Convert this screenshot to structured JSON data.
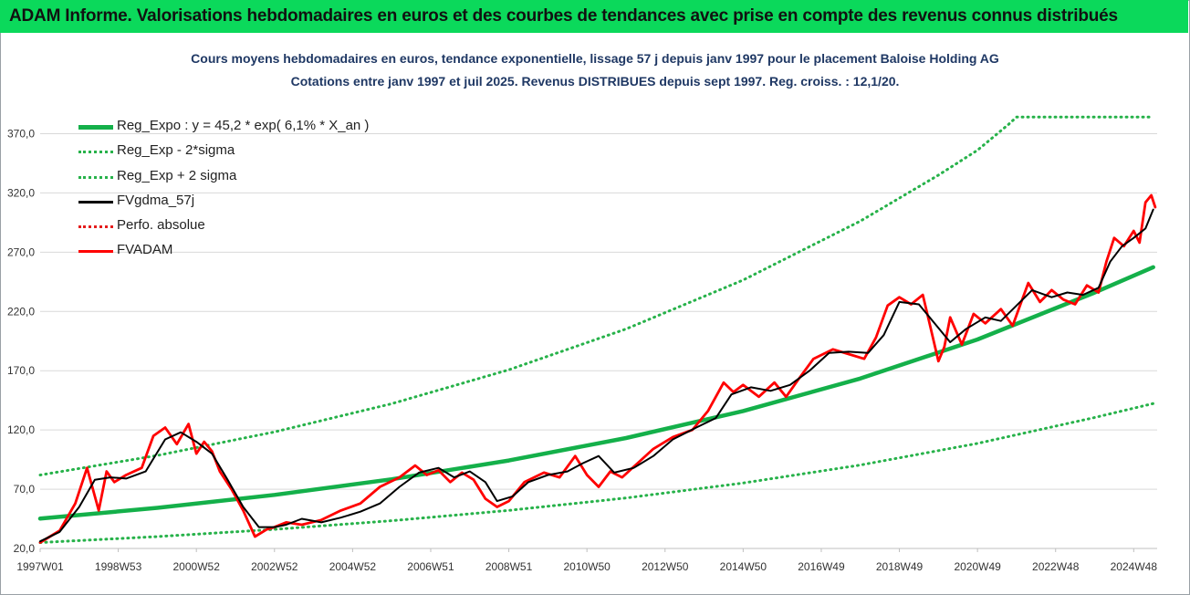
{
  "banner": {
    "title": "ADAM Informe. Valorisations hebdomadaires en euros et des courbes de tendances avec prise en compte des revenus connus distribués",
    "color": "#0bd95b"
  },
  "chart_data": {
    "type": "line",
    "title": "Cours moyens hebdomadaires en euros, tendance exponentielle, lissage 57 j depuis janv 1997 pour le placement Baloise Holding AG",
    "subtitle": "Cotations entre janv 1997 et juil 2025. Revenus DISTRIBUES depuis sept 1997. Reg. croiss. : 12,1/20.",
    "xlabel": "",
    "ylabel": "",
    "x_tick_labels": [
      "1997W01",
      "1998W53",
      "2000W52",
      "2002W52",
      "2004W52",
      "2006W51",
      "2008W51",
      "2010W50",
      "2012W50",
      "2014W50",
      "2016W49",
      "2018W49",
      "2020W49",
      "2022W48",
      "2024W48"
    ],
    "y_ticks": [
      "20,0",
      "70,0",
      "120,0",
      "170,0",
      "220,0",
      "270,0",
      "320,0",
      "370,0"
    ],
    "ylim": [
      20,
      395
    ],
    "xlim": [
      1997.0,
      2025.6
    ],
    "grid": true,
    "legend_position": "top-left",
    "series": [
      {
        "name": "Reg_Expo : y = 45,2 * exp( 6,1% *  X_an )",
        "color": "#14b04a",
        "style": "solid",
        "x": [
          1997.0,
          2000.0,
          2003.0,
          2006.0,
          2009.0,
          2012.0,
          2015.0,
          2018.0,
          2021.0,
          2024.0,
          2025.5
        ],
        "values": [
          45.2,
          54.3,
          65.2,
          78.4,
          94.2,
          113.2,
          136.0,
          163.4,
          196.3,
          235.9,
          257.3
        ]
      },
      {
        "name": "Reg_Exp - 2*sigma",
        "color": "#27b24a",
        "style": "dotted",
        "x": [
          1997.0,
          2000.0,
          2003.0,
          2006.0,
          2009.0,
          2012.0,
          2015.0,
          2018.0,
          2021.0,
          2024.0,
          2025.5
        ],
        "values": [
          25.0,
          30.0,
          36.1,
          43.4,
          52.1,
          62.6,
          75.2,
          90.4,
          108.6,
          130.5,
          142.3
        ]
      },
      {
        "name": "Reg_Exp + 2 sigma",
        "color": "#27b24a",
        "style": "dotted",
        "x": [
          1997.0,
          2000.0,
          2003.0,
          2006.0,
          2009.0,
          2012.0,
          2015.0,
          2018.0,
          2020.0,
          2021.0,
          2021.8,
          2022.0,
          2025.5
        ],
        "values": [
          82.0,
          98.5,
          118.3,
          142.1,
          170.8,
          205.2,
          246.5,
          296.2,
          335.0,
          356.0,
          378.0,
          384.0,
          384.0
        ]
      },
      {
        "name": "FVgdma_57j",
        "color": "#000000",
        "style": "solid",
        "x": [
          1997.0,
          1997.5,
          1998.0,
          1998.4,
          1998.8,
          1999.2,
          1999.7,
          2000.2,
          2000.6,
          2001.0,
          2001.4,
          2001.8,
          2002.2,
          2002.6,
          2003.0,
          2003.3,
          2003.7,
          2004.2,
          2004.7,
          2005.2,
          2005.7,
          2006.2,
          2006.7,
          2007.2,
          2007.6,
          2008.0,
          2008.4,
          2008.7,
          2009.1,
          2009.5,
          2010.0,
          2010.5,
          2010.9,
          2011.3,
          2011.7,
          2012.2,
          2012.7,
          2013.2,
          2013.8,
          2014.3,
          2014.7,
          2015.2,
          2015.7,
          2016.2,
          2016.7,
          2017.2,
          2017.7,
          2018.2,
          2018.6,
          2019.0,
          2019.5,
          2019.9,
          2020.3,
          2020.7,
          2021.2,
          2021.6,
          2022.0,
          2022.4,
          2022.9,
          2023.3,
          2023.7,
          2024.1,
          2024.4,
          2024.7,
          2025.0,
          2025.3,
          2025.5
        ],
        "values": [
          26,
          34,
          55,
          78,
          80,
          79,
          85,
          112,
          118,
          110,
          100,
          78,
          55,
          38,
          38,
          40,
          45,
          42,
          46,
          51,
          58,
          72,
          84,
          88,
          80,
          85,
          76,
          60,
          64,
          76,
          82,
          85,
          92,
          98,
          84,
          88,
          98,
          112,
          122,
          130,
          150,
          156,
          153,
          158,
          170,
          185,
          186,
          185,
          200,
          228,
          226,
          210,
          194,
          205,
          215,
          212,
          225,
          238,
          232,
          236,
          234,
          240,
          262,
          275,
          282,
          290,
          306
        ]
      },
      {
        "name": "Perfo. absolue",
        "color": "#e41c1c",
        "style": "dotted",
        "x": [],
        "values": []
      },
      {
        "name": "FVADAM",
        "color": "#ff0000",
        "style": "solid",
        "x": [
          1997.0,
          1997.5,
          1997.9,
          1998.2,
          1998.5,
          1998.7,
          1998.9,
          1999.2,
          1999.6,
          1999.9,
          2000.2,
          2000.5,
          2000.8,
          2001.0,
          2001.2,
          2001.4,
          2001.6,
          2001.9,
          2002.2,
          2002.5,
          2002.8,
          2003.0,
          2003.3,
          2003.7,
          2004.2,
          2004.7,
          2005.2,
          2005.7,
          2006.2,
          2006.6,
          2006.9,
          2007.2,
          2007.5,
          2007.8,
          2008.1,
          2008.4,
          2008.7,
          2009.0,
          2009.4,
          2009.9,
          2010.3,
          2010.7,
          2011.0,
          2011.3,
          2011.6,
          2011.9,
          2012.3,
          2012.7,
          2013.2,
          2013.7,
          2014.1,
          2014.5,
          2014.75,
          2015.0,
          2015.4,
          2015.8,
          2016.1,
          2016.4,
          2016.8,
          2017.3,
          2017.7,
          2018.1,
          2018.4,
          2018.7,
          2019.0,
          2019.3,
          2019.6,
          2019.8,
          2020.0,
          2020.15,
          2020.3,
          2020.6,
          2020.9,
          2021.2,
          2021.6,
          2021.9,
          2022.1,
          2022.3,
          2022.6,
          2022.9,
          2023.2,
          2023.5,
          2023.8,
          2024.1,
          2024.3,
          2024.5,
          2024.75,
          2025.0,
          2025.15,
          2025.3,
          2025.45,
          2025.55
        ],
        "values": [
          25,
          35,
          58,
          88,
          52,
          85,
          76,
          82,
          88,
          115,
          122,
          108,
          125,
          100,
          110,
          102,
          85,
          70,
          52,
          30,
          36,
          38,
          42,
          40,
          44,
          52,
          58,
          72,
          80,
          90,
          82,
          86,
          76,
          84,
          78,
          62,
          55,
          60,
          76,
          84,
          80,
          98,
          82,
          72,
          85,
          80,
          92,
          104,
          114,
          120,
          136,
          160,
          152,
          158,
          148,
          160,
          148,
          162,
          180,
          188,
          184,
          180,
          198,
          225,
          232,
          226,
          234,
          206,
          178,
          190,
          215,
          192,
          218,
          210,
          222,
          208,
          226,
          244,
          228,
          238,
          230,
          226,
          242,
          236,
          262,
          282,
          275,
          288,
          278,
          312,
          318,
          308
        ]
      }
    ]
  }
}
